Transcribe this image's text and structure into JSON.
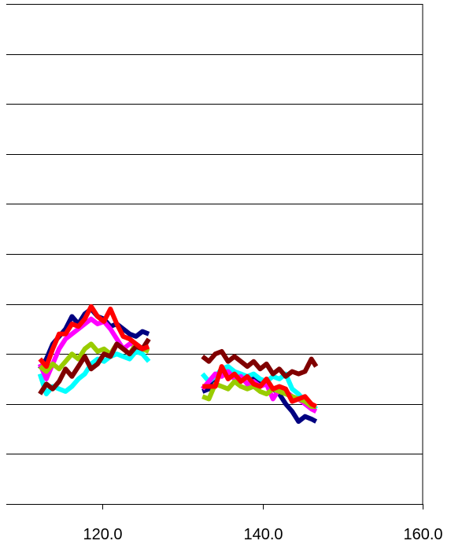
{
  "chart_data": {
    "type": "line",
    "title": "",
    "xlabel": "",
    "ylabel": "",
    "xlim": [
      108,
      160
    ],
    "ylim": [
      0,
      10
    ],
    "x_ticks": [
      {
        "value": 120,
        "label": "120.0"
      },
      {
        "value": 140,
        "label": "140.0"
      },
      {
        "value": 160,
        "label": "160.0"
      }
    ],
    "y_gridlines": [
      1,
      2,
      3,
      4,
      5,
      6,
      7,
      8,
      9,
      10
    ],
    "grid": "horizontal",
    "legend": "none",
    "series": [
      {
        "color": "#000080",
        "segments": [
          {
            "x": [
              112.2,
              113.0,
              113.8,
              114.6,
              115.4,
              116.2,
              117.0,
              117.8,
              118.6,
              119.4,
              120.2,
              121.0,
              121.8,
              122.6,
              123.4,
              124.2,
              125.0,
              125.8
            ],
            "y": [
              2.7,
              2.9,
              3.2,
              3.35,
              3.5,
              3.75,
              3.6,
              3.8,
              3.9,
              3.75,
              3.7,
              3.55,
              3.6,
              3.5,
              3.4,
              3.35,
              3.45,
              3.4
            ]
          },
          {
            "x": [
              132.5,
              133.3,
              134.1,
              134.9,
              135.7,
              136.5,
              137.3,
              138.1,
              138.9,
              139.7,
              140.5,
              141.3,
              142.1,
              142.9,
              143.7,
              144.5,
              145.3,
              146.1,
              146.7
            ],
            "y": [
              2.25,
              2.3,
              2.5,
              2.6,
              2.7,
              2.6,
              2.5,
              2.55,
              2.5,
              2.45,
              2.4,
              2.3,
              2.2,
              2.0,
              1.85,
              1.65,
              1.75,
              1.7,
              1.65
            ]
          }
        ]
      },
      {
        "color": "#00FFFF",
        "segments": [
          {
            "x": [
              112.2,
              113.0,
              113.8,
              114.6,
              115.4,
              116.2,
              117.0,
              117.8,
              118.6,
              119.4,
              120.2,
              121.0,
              121.8,
              122.6,
              123.4,
              124.2,
              125.0,
              125.8
            ],
            "y": [
              2.6,
              2.2,
              2.35,
              2.3,
              2.25,
              2.35,
              2.5,
              2.6,
              2.8,
              2.9,
              2.85,
              2.95,
              3.0,
              2.95,
              2.9,
              3.05,
              3.0,
              2.85
            ]
          },
          {
            "x": [
              132.5,
              133.3,
              134.1,
              134.9,
              135.7,
              136.5,
              137.3,
              138.1,
              138.9,
              139.7,
              140.5,
              141.3,
              142.1,
              142.9,
              143.7,
              144.5,
              145.3,
              146.1,
              146.7
            ],
            "y": [
              2.6,
              2.45,
              2.55,
              2.7,
              2.75,
              2.65,
              2.6,
              2.55,
              2.6,
              2.5,
              2.45,
              2.55,
              2.5,
              2.6,
              2.3,
              2.2,
              2.05,
              2.0,
              1.9
            ]
          }
        ]
      },
      {
        "color": "#FF00FF",
        "segments": [
          {
            "x": [
              112.2,
              113.0,
              113.8,
              114.6,
              115.4,
              116.2,
              117.0,
              117.8,
              118.6,
              119.4,
              120.2,
              121.0,
              121.8,
              122.6,
              123.4,
              124.2,
              125.0,
              125.8
            ],
            "y": [
              2.8,
              2.5,
              2.8,
              3.1,
              3.3,
              3.4,
              3.5,
              3.6,
              3.7,
              3.6,
              3.65,
              3.5,
              3.3,
              3.1,
              3.2,
              3.2,
              3.1,
              3.1
            ]
          },
          {
            "x": [
              132.5,
              133.3,
              134.1,
              134.9,
              135.7,
              136.5,
              137.3,
              138.1,
              138.9,
              139.7,
              140.5,
              141.3,
              142.1,
              142.9,
              143.7,
              144.5,
              145.3,
              146.1,
              146.7
            ],
            "y": [
              2.3,
              2.45,
              2.6,
              2.55,
              2.65,
              2.5,
              2.55,
              2.4,
              2.45,
              2.35,
              2.4,
              2.1,
              2.3,
              2.25,
              2.15,
              2.1,
              2.0,
              1.9,
              1.85
            ]
          }
        ]
      },
      {
        "color": "#99CC00",
        "segments": [
          {
            "x": [
              112.2,
              113.0,
              113.8,
              114.6,
              115.4,
              116.2,
              117.0,
              117.8,
              118.6,
              119.4,
              120.2,
              121.0,
              121.8,
              122.6,
              123.4,
              124.2,
              125.0,
              125.8
            ],
            "y": [
              2.75,
              2.65,
              2.8,
              2.7,
              2.85,
              3.0,
              2.9,
              3.1,
              3.2,
              3.05,
              3.1,
              3.0,
              3.2,
              3.1,
              3.0,
              3.2,
              3.1,
              3.05
            ]
          },
          {
            "x": [
              132.5,
              133.3,
              134.1,
              134.9,
              135.7,
              136.5,
              137.3,
              138.1,
              138.9,
              139.7,
              140.5,
              141.3,
              142.1,
              142.9,
              143.7,
              144.5,
              145.3,
              146.1,
              146.7
            ],
            "y": [
              2.15,
              2.1,
              2.4,
              2.35,
              2.3,
              2.45,
              2.35,
              2.3,
              2.35,
              2.25,
              2.2,
              2.3,
              2.25,
              2.2,
              2.15,
              2.1,
              2.05,
              1.95,
              1.95
            ]
          }
        ]
      },
      {
        "color": "#800000",
        "segments": [
          {
            "x": [
              112.2,
              113.0,
              113.8,
              114.6,
              115.4,
              116.2,
              117.0,
              117.8,
              118.6,
              119.4,
              120.2,
              121.0,
              121.8,
              122.6,
              123.4,
              124.2,
              125.0,
              125.8
            ],
            "y": [
              2.2,
              2.4,
              2.3,
              2.45,
              2.7,
              2.55,
              2.75,
              2.95,
              2.7,
              2.8,
              3.0,
              2.95,
              3.2,
              3.1,
              3.0,
              3.15,
              3.1,
              3.3
            ]
          },
          {
            "x": [
              132.5,
              133.3,
              134.1,
              134.9,
              135.7,
              136.5,
              137.3,
              138.1,
              138.9,
              139.7,
              140.5,
              141.3,
              142.1,
              142.9,
              143.7,
              144.5,
              145.3,
              146.1,
              146.7
            ],
            "y": [
              2.95,
              2.85,
              3.0,
              3.05,
              2.85,
              2.95,
              2.85,
              2.75,
              2.85,
              2.7,
              2.8,
              2.6,
              2.7,
              2.55,
              2.65,
              2.6,
              2.65,
              2.9,
              2.75
            ]
          }
        ]
      },
      {
        "color": "#FF0000",
        "segments": [
          {
            "x": [
              112.2,
              113.0,
              113.8,
              114.6,
              115.4,
              116.2,
              117.0,
              117.8,
              118.6,
              119.4,
              120.2,
              121.0,
              121.8,
              122.6,
              123.4,
              124.2,
              125.0,
              125.8
            ],
            "y": [
              2.9,
              2.75,
              3.1,
              3.4,
              3.4,
              3.6,
              3.55,
              3.7,
              3.95,
              3.75,
              3.65,
              3.9,
              3.6,
              3.35,
              3.3,
              3.2,
              3.1,
              3.15
            ]
          },
          {
            "x": [
              132.5,
              133.3,
              134.1,
              134.9,
              135.7,
              136.5,
              137.3,
              138.1,
              138.9,
              139.7,
              140.5,
              141.3,
              142.1,
              142.9,
              143.7,
              144.5,
              145.3,
              146.1,
              146.7
            ],
            "y": [
              2.35,
              2.35,
              2.35,
              2.75,
              2.5,
              2.6,
              2.45,
              2.55,
              2.4,
              2.35,
              2.5,
              2.3,
              2.35,
              2.3,
              2.05,
              2.1,
              2.15,
              2.0,
              1.95
            ]
          }
        ]
      }
    ]
  }
}
